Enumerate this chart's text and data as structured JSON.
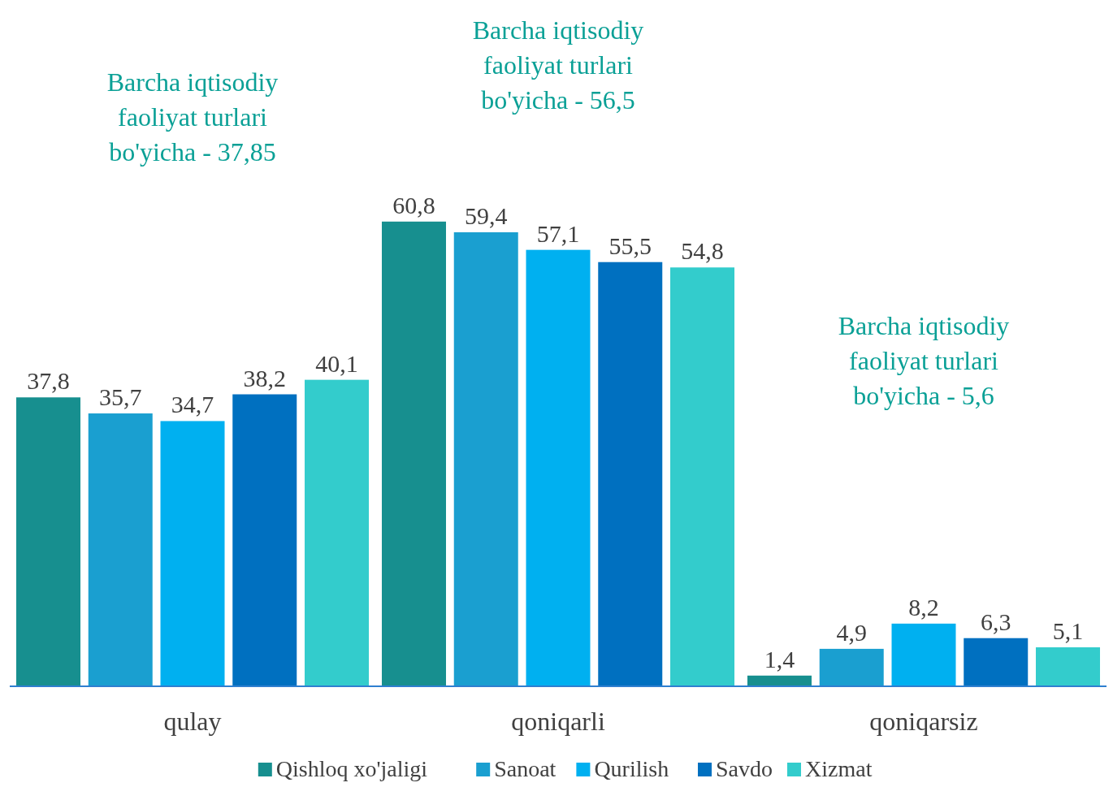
{
  "chart_data": {
    "type": "bar",
    "categories": [
      "qulay",
      "qoniqarli",
      "qoniqarsiz"
    ],
    "series": [
      {
        "name": "Qishloq xo'jaligi",
        "color": "#178f8f",
        "values": [
          37.8,
          60.8,
          1.4
        ],
        "value_labels": [
          "37,8",
          "60,8",
          "1,4"
        ]
      },
      {
        "name": "Sanoat",
        "color": "#1a9fd0",
        "values": [
          35.7,
          59.4,
          4.9
        ],
        "value_labels": [
          "35,7",
          "59,4",
          "4,9"
        ]
      },
      {
        "name": "Qurilish",
        "color": "#00b0f0",
        "values": [
          34.7,
          57.1,
          8.2
        ],
        "value_labels": [
          "34,7",
          "57,1",
          "8,2"
        ]
      },
      {
        "name": "Savdo",
        "color": "#0070c0",
        "values": [
          38.2,
          55.5,
          6.3
        ],
        "value_labels": [
          "38,2",
          "55,5",
          "6,3"
        ]
      },
      {
        "name": "Xizmat",
        "color": "#33cccc",
        "values": [
          40.1,
          54.8,
          5.1
        ],
        "value_labels": [
          "40,1",
          "54,8",
          "5,1"
        ]
      }
    ],
    "legend": "bottom",
    "grid": false,
    "annotations": [
      "Barcha iqtisodiy faoliyat turlari bo'yicha - 37,85",
      "Barcha iqtisodiy faoliyat turlari bo'yicha - 56,5",
      "Barcha iqtisodiy faoliyat turlari bo'yicha - 5,6"
    ]
  }
}
